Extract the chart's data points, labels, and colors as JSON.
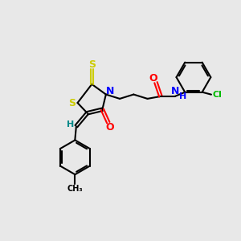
{
  "bg_color": "#e8e8e8",
  "bond_color": "#000000",
  "S_color": "#cccc00",
  "N_color": "#0000ff",
  "O_color": "#ff0000",
  "Cl_color": "#00bb00",
  "H_color": "#008888",
  "figsize": [
    3.0,
    3.0
  ],
  "dpi": 100,
  "xlim": [
    0,
    10
  ],
  "ylim": [
    0,
    10
  ]
}
